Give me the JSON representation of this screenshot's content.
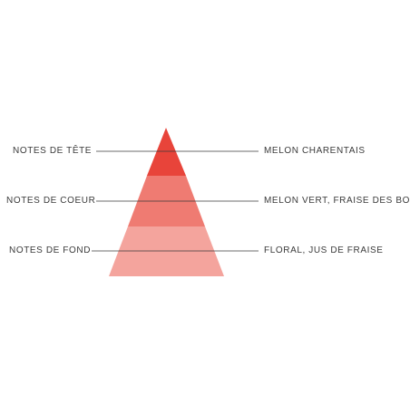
{
  "pyramid": {
    "colors": {
      "top": "#e8443a",
      "middle": "#ef7b72",
      "base": "#f4a49d",
      "line": "#3a3a3a",
      "text": "#3a3a3a"
    },
    "tiers": [
      {
        "level": "top",
        "left_label": "NOTES DE TÊTE",
        "right_label": "MELON CHARENTAIS"
      },
      {
        "level": "middle",
        "left_label": "NOTES DE COEUR",
        "right_label": "MELON VERT, FRAISE DES BOIS"
      },
      {
        "level": "base",
        "left_label": "NOTES DE FOND",
        "right_label": "FLORAL, JUS DE FRAISE"
      }
    ]
  }
}
